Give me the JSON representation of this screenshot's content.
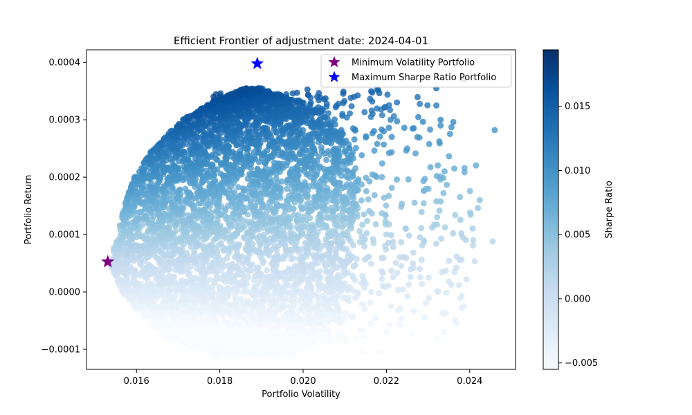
{
  "chart_data": {
    "type": "scatter",
    "title": "Efficient Frontier of adjustment date: 2024-04-01",
    "xlabel": "Portfolio Volatility",
    "ylabel": "Portfolio Return",
    "xlim": [
      0.0148,
      0.0251
    ],
    "ylim": [
      -0.000135,
      0.000422
    ],
    "xticks": [
      {
        "value": 0.016,
        "label": "0.016"
      },
      {
        "value": 0.018,
        "label": "0.018"
      },
      {
        "value": 0.02,
        "label": "0.020"
      },
      {
        "value": 0.022,
        "label": "0.022"
      },
      {
        "value": 0.024,
        "label": "0.024"
      }
    ],
    "yticks": [
      {
        "value": -0.0001,
        "label": "−0.0001"
      },
      {
        "value": 0.0,
        "label": "0.0000"
      },
      {
        "value": 0.0001,
        "label": "0.0001"
      },
      {
        "value": 0.0002,
        "label": "0.0002"
      },
      {
        "value": 0.0003,
        "label": "0.0003"
      },
      {
        "value": 0.0004,
        "label": "0.0004"
      }
    ],
    "grid": false,
    "colormap": "Blues",
    "colorbar": {
      "label": "Sharpe Ratio",
      "range": [
        -0.0055,
        0.0194
      ],
      "ticks": [
        {
          "value": -0.005,
          "label": "−0.005"
        },
        {
          "value": 0.0,
          "label": "0.000"
        },
        {
          "value": 0.005,
          "label": "0.005"
        },
        {
          "value": 0.01,
          "label": "0.010"
        },
        {
          "value": 0.015,
          "label": "0.015"
        }
      ]
    },
    "cloud": {
      "description_points": "dense cloud of simulated portfolios",
      "volatility_range": [
        0.0153,
        0.0246
      ],
      "return_range": [
        -0.00011,
        0.00037
      ]
    },
    "outliers": [
      {
        "x": 0.0246,
        "y": 0.000282
      },
      {
        "x": 0.02455,
        "y": 8.8e-05
      },
      {
        "x": 0.02385,
        "y": 0.00037
      },
      {
        "x": 0.02365,
        "y": 0.000134
      },
      {
        "x": 0.0236,
        "y": 0.000102
      },
      {
        "x": 0.0238,
        "y": 0.000102
      },
      {
        "x": 0.0233,
        "y": 0.0003
      },
      {
        "x": 0.0233,
        "y": 0.00029
      },
      {
        "x": 0.0232,
        "y": 0.000325
      },
      {
        "x": 0.0232,
        "y": 0.000355
      },
      {
        "x": 0.0232,
        "y": 0.000158
      },
      {
        "x": 0.0231,
        "y": 0.000112
      },
      {
        "x": 0.02305,
        "y": 0.000283
      },
      {
        "x": 0.0229,
        "y": 0.000176
      },
      {
        "x": 0.0228,
        "y": 4e-05
      },
      {
        "x": 0.0229,
        "y": 8.7e-05
      },
      {
        "x": 0.0229,
        "y": 9e-05
      },
      {
        "x": 0.02205,
        "y": 1.1e-05
      },
      {
        "x": 0.0219,
        "y": -0.000105
      },
      {
        "x": 0.0214,
        "y": -0.000104
      },
      {
        "x": 0.022,
        "y": 0.0001
      },
      {
        "x": 0.0221,
        "y": 0.0003
      },
      {
        "x": 0.0225,
        "y": 0.00025
      }
    ],
    "markers": [
      {
        "name": "Minimum Volatility Portfolio",
        "x": 0.01531,
        "y": 5.25e-05,
        "color": "#800080"
      },
      {
        "name": "Maximum Sharpe Ratio Portfolio",
        "x": 0.0189,
        "y": 0.000398,
        "color": "#0000ff"
      }
    ],
    "legend": "top-right"
  }
}
